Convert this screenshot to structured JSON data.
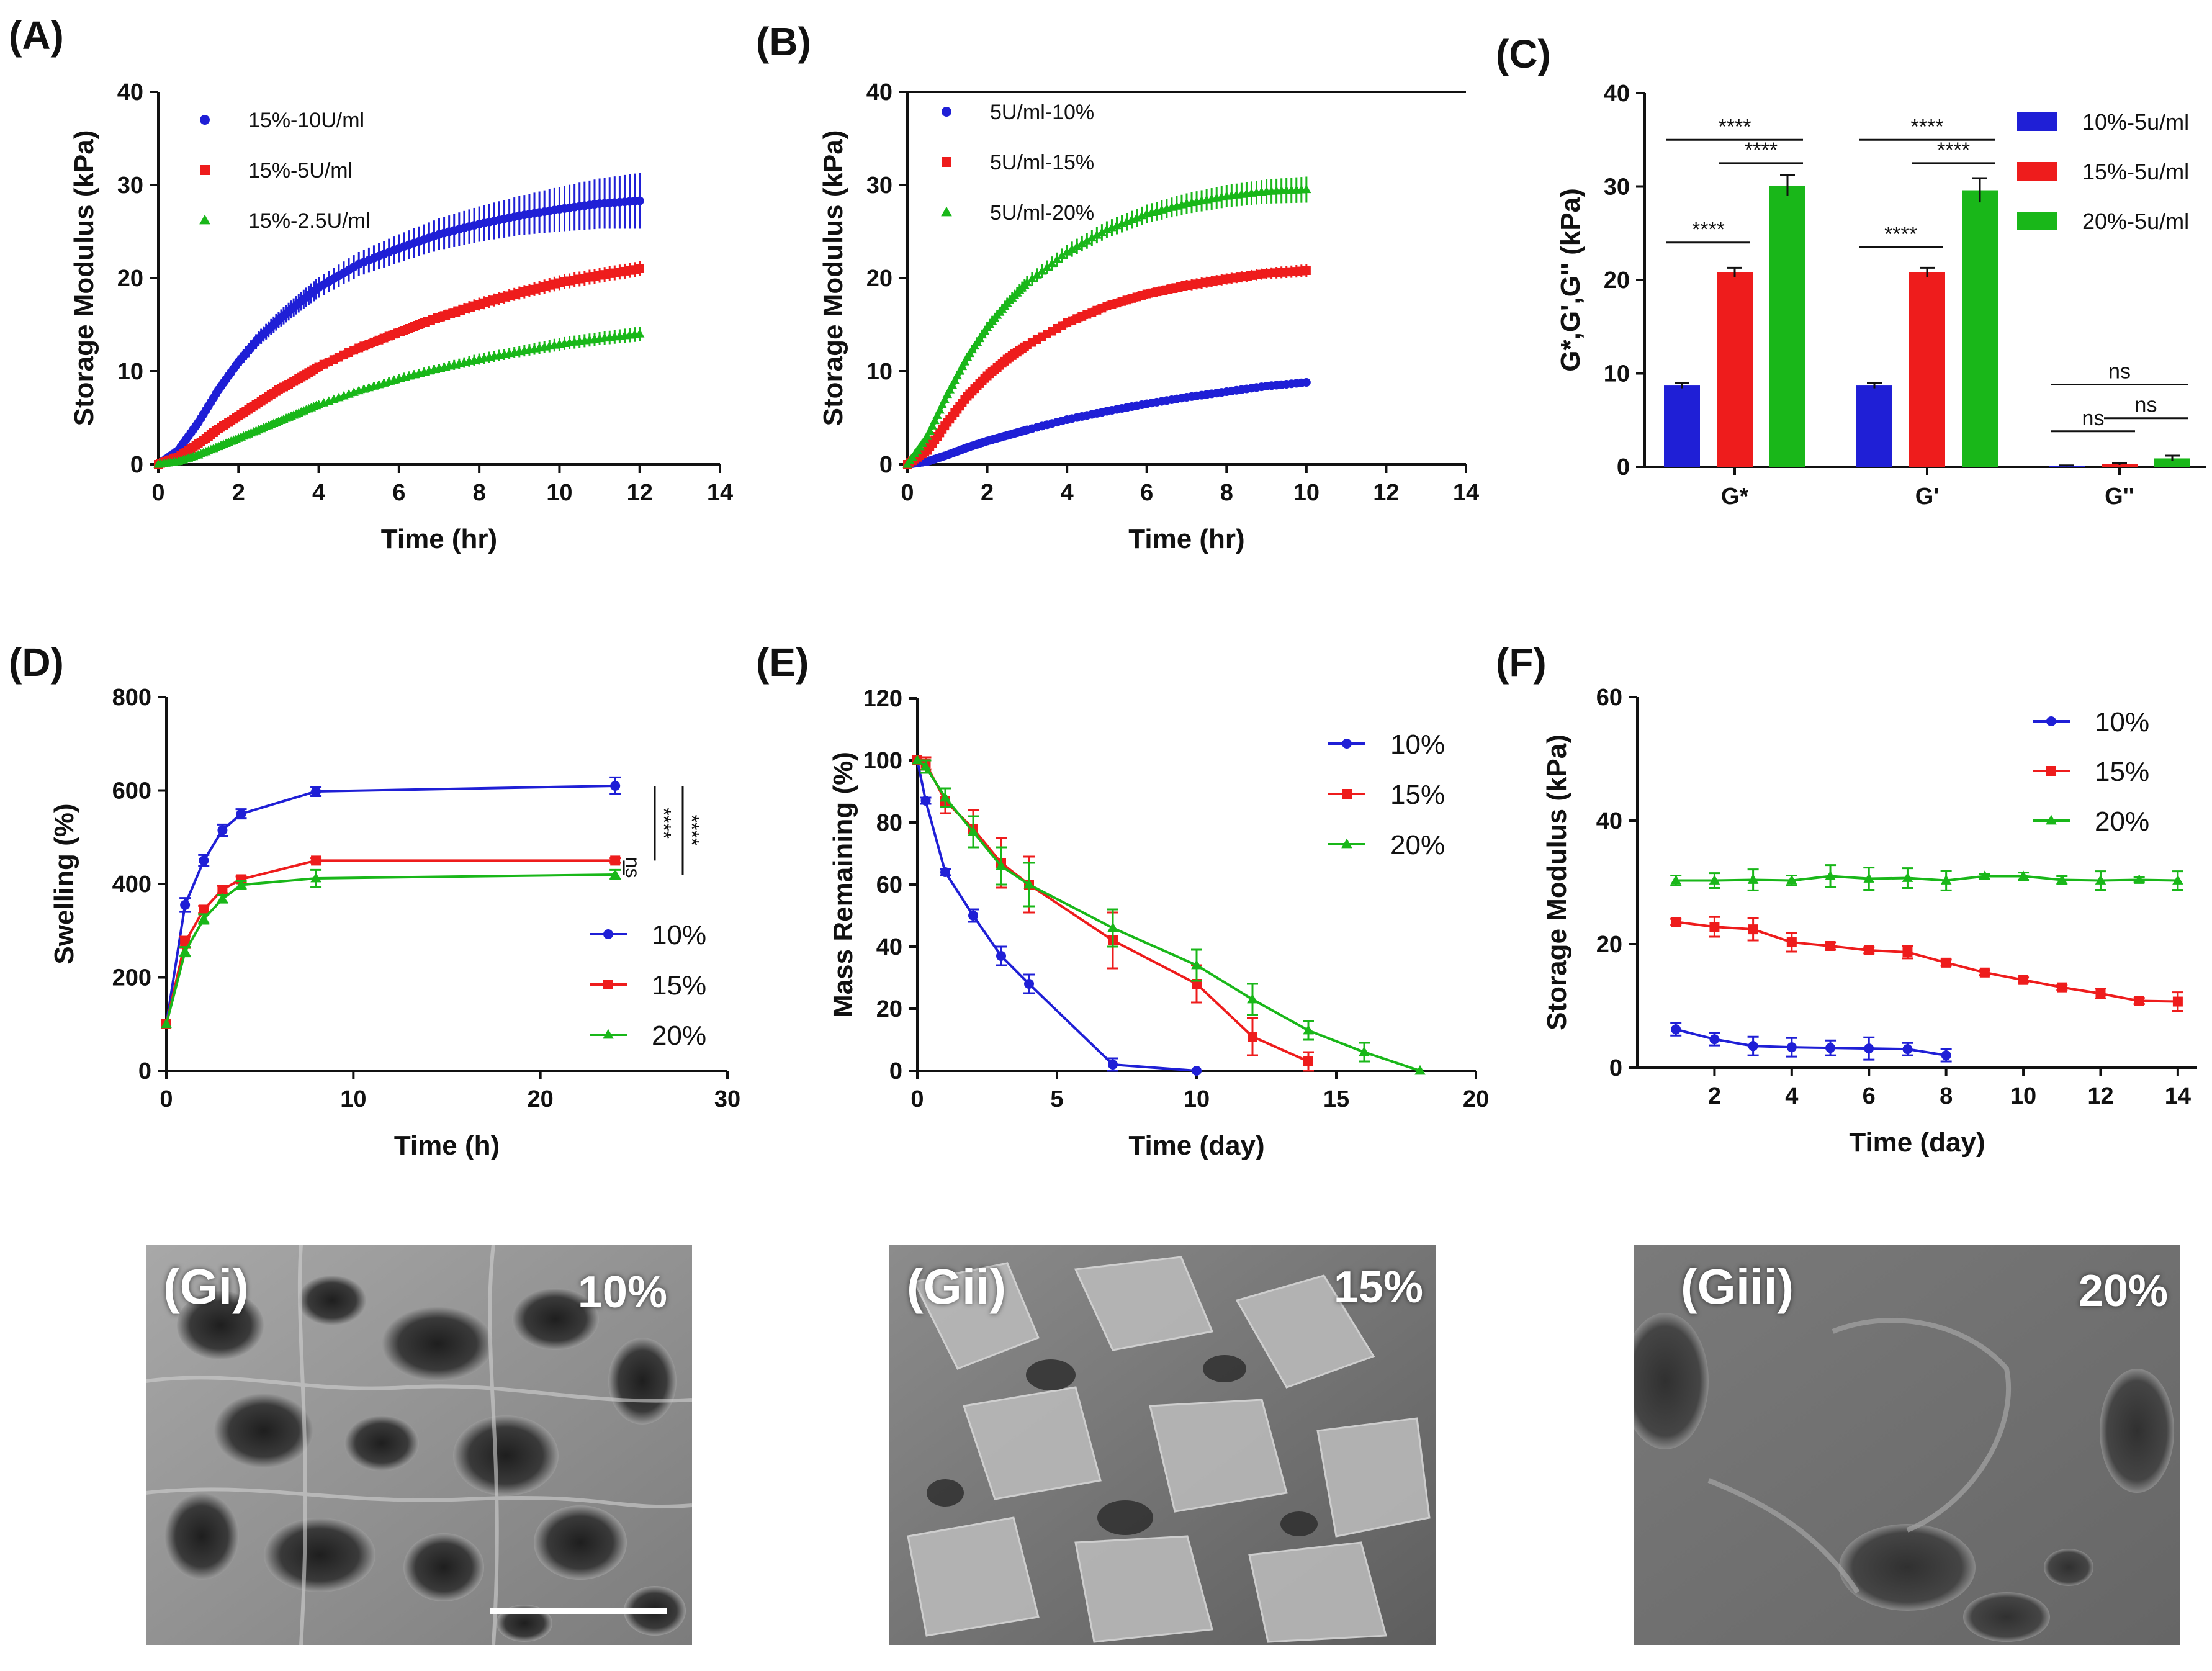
{
  "panels": {
    "A": "(A)",
    "B": "(B)",
    "C": "(C)",
    "D": "(D)",
    "E": "(E)",
    "F": "(F)"
  },
  "colors": {
    "blue": "#1f1fd6",
    "red": "#ee1c1c",
    "green": "#19b719",
    "black": "#111111"
  },
  "chart_data": [
    {
      "id": "A",
      "type": "line",
      "xlabel": "Time (hr)",
      "ylabel": "Storage Modulus (kPa)",
      "xlim": [
        0,
        14
      ],
      "ylim": [
        0,
        40
      ],
      "xticks": [
        0,
        2,
        4,
        6,
        8,
        10,
        12,
        14
      ],
      "yticks": [
        0,
        10,
        20,
        30,
        40
      ],
      "legend_position": "top-left",
      "series": [
        {
          "name": "15%-10U/ml",
          "color": "blue",
          "marker": "circle",
          "x": [
            0,
            0.5,
            1,
            1.5,
            2,
            2.5,
            3,
            3.5,
            4,
            5,
            6,
            7,
            8,
            9,
            10,
            11,
            12
          ],
          "y": [
            0,
            1.5,
            4.5,
            8,
            11,
            13.5,
            15.5,
            17.3,
            19,
            21.5,
            23.2,
            24.7,
            25.8,
            26.7,
            27.4,
            28,
            28.3
          ],
          "err": [
            0.3,
            0.4,
            0.5,
            0.6,
            0.7,
            0.8,
            0.9,
            1,
            1.1,
            1.3,
            1.5,
            1.7,
            1.9,
            2.1,
            2.4,
            2.7,
            3
          ]
        },
        {
          "name": "15%-5U/ml",
          "color": "red",
          "marker": "square",
          "x": [
            0,
            0.5,
            1,
            1.5,
            2,
            2.5,
            3,
            3.5,
            4,
            5,
            6,
            7,
            8,
            9,
            10,
            11,
            12
          ],
          "y": [
            0,
            0.8,
            2.2,
            3.8,
            5.2,
            6.6,
            8,
            9.2,
            10.5,
            12.5,
            14.2,
            15.8,
            17.2,
            18.4,
            19.5,
            20.3,
            21
          ],
          "err": [
            0.2,
            0.2,
            0.3,
            0.3,
            0.3,
            0.4,
            0.4,
            0.4,
            0.5,
            0.5,
            0.6,
            0.6,
            0.7,
            0.7,
            0.8,
            0.8,
            0.8
          ]
        },
        {
          "name": "15%-2.5U/ml",
          "color": "green",
          "marker": "triangle",
          "x": [
            0,
            0.5,
            1,
            1.5,
            2,
            2.5,
            3,
            3.5,
            4,
            5,
            6,
            7,
            8,
            9,
            10,
            11,
            12
          ],
          "y": [
            0,
            0.3,
            1,
            1.9,
            2.8,
            3.7,
            4.6,
            5.5,
            6.4,
            7.9,
            9.2,
            10.3,
            11.3,
            12.1,
            12.9,
            13.5,
            14
          ],
          "err": [
            0.1,
            0.2,
            0.2,
            0.2,
            0.3,
            0.3,
            0.3,
            0.3,
            0.4,
            0.4,
            0.5,
            0.5,
            0.6,
            0.6,
            0.7,
            0.7,
            0.8
          ]
        }
      ]
    },
    {
      "id": "B",
      "type": "line",
      "xlabel": "Time (hr)",
      "ylabel": "Storage Modulus (kPa)",
      "xlim": [
        0,
        14
      ],
      "ylim": [
        0,
        40
      ],
      "xticks": [
        0,
        2,
        4,
        6,
        8,
        10,
        12,
        14
      ],
      "yticks": [
        0,
        10,
        20,
        30,
        40
      ],
      "legend_position": "top-left",
      "series": [
        {
          "name": "5U/ml-10%",
          "color": "blue",
          "marker": "circle",
          "x": [
            0,
            0.5,
            1,
            1.5,
            2,
            2.5,
            3,
            4,
            5,
            6,
            7,
            8,
            9,
            10
          ],
          "y": [
            0,
            0.3,
            1,
            1.8,
            2.5,
            3.1,
            3.7,
            4.8,
            5.7,
            6.5,
            7.2,
            7.8,
            8.4,
            8.8
          ],
          "err": [
            0.1,
            0.1,
            0.1,
            0.1,
            0.1,
            0.2,
            0.2,
            0.2,
            0.2,
            0.2,
            0.2,
            0.2,
            0.3,
            0.3
          ]
        },
        {
          "name": "5U/ml-15%",
          "color": "red",
          "marker": "square",
          "x": [
            0,
            0.5,
            1,
            1.5,
            2,
            2.5,
            3,
            4,
            5,
            6,
            7,
            8,
            9,
            10
          ],
          "y": [
            0,
            1.5,
            4.5,
            7.3,
            9.5,
            11.3,
            12.8,
            15.2,
            17,
            18.3,
            19.2,
            19.9,
            20.5,
            20.8
          ],
          "err": [
            0.2,
            0.3,
            0.3,
            0.3,
            0.4,
            0.4,
            0.4,
            0.5,
            0.5,
            0.5,
            0.6,
            0.6,
            0.6,
            0.7
          ]
        },
        {
          "name": "5U/ml-20%",
          "color": "green",
          "marker": "triangle",
          "x": [
            0,
            0.5,
            1,
            1.5,
            2,
            2.5,
            3,
            4,
            5,
            6,
            7,
            8,
            9,
            10
          ],
          "y": [
            0,
            3,
            7.5,
            11.5,
            14.7,
            17.3,
            19.5,
            22.8,
            25.2,
            26.9,
            28,
            28.8,
            29.3,
            29.5
          ],
          "err": [
            0.3,
            0.4,
            0.5,
            0.5,
            0.6,
            0.6,
            0.7,
            0.8,
            0.9,
            1,
            1.1,
            1.2,
            1.3,
            1.4
          ]
        }
      ]
    },
    {
      "id": "C",
      "type": "bar",
      "ylabel": "G*,G',G'' (kPa)",
      "xlabel": "",
      "ylim": [
        0,
        40
      ],
      "yticks": [
        0,
        10,
        20,
        30,
        40
      ],
      "categories": [
        "G*",
        "G'",
        "G''"
      ],
      "legend_position": "top-right",
      "series": [
        {
          "name": "10%-5u/ml",
          "color": "blue",
          "values": [
            8.7,
            8.7,
            0.1
          ],
          "err": [
            0.3,
            0.3,
            0.05
          ]
        },
        {
          "name": "15%-5u/ml",
          "color": "red",
          "values": [
            20.8,
            20.8,
            0.3
          ],
          "err": [
            0.5,
            0.5,
            0.1
          ]
        },
        {
          "name": "20%-5u/ml",
          "color": "green",
          "values": [
            30.1,
            29.6,
            0.9
          ],
          "err": [
            1.1,
            1.3,
            0.3
          ]
        }
      ],
      "significance": [
        {
          "text": "****",
          "group": 0,
          "from": 0,
          "to": 1,
          "level": 24
        },
        {
          "text": "****",
          "group": 0,
          "from": 0,
          "to": 2,
          "level": 35
        },
        {
          "text": "****",
          "group": 0,
          "from": 1,
          "to": 2,
          "level": 32.5
        },
        {
          "text": "****",
          "group": 1,
          "from": 0,
          "to": 1,
          "level": 23.5
        },
        {
          "text": "****",
          "group": 1,
          "from": 0,
          "to": 2,
          "level": 35
        },
        {
          "text": "****",
          "group": 1,
          "from": 1,
          "to": 2,
          "level": 32.5
        },
        {
          "text": "ns",
          "group": 2,
          "from": 0,
          "to": 1,
          "level": 3.8
        },
        {
          "text": "ns",
          "group": 2,
          "from": 0,
          "to": 2,
          "level": 8.8
        },
        {
          "text": "ns",
          "group": 2,
          "from": 1,
          "to": 2,
          "level": 5.2
        }
      ]
    },
    {
      "id": "D",
      "type": "line",
      "xlabel": "Time (h)",
      "ylabel": "Swelling (%)",
      "xlim": [
        0,
        30
      ],
      "ylim": [
        0,
        800
      ],
      "xticks": [
        0,
        10,
        20,
        30
      ],
      "yticks": [
        0,
        200,
        400,
        600,
        800
      ],
      "legend_position": "bottom-right",
      "series": [
        {
          "name": "10%",
          "color": "blue",
          "marker": "circle",
          "x": [
            0,
            1,
            2,
            3,
            4,
            8,
            24
          ],
          "y": [
            100,
            355,
            450,
            515,
            550,
            598,
            610
          ],
          "err": [
            0,
            15,
            12,
            12,
            10,
            10,
            18
          ]
        },
        {
          "name": "15%",
          "color": "red",
          "marker": "square",
          "x": [
            0,
            1,
            2,
            3,
            4,
            8,
            24
          ],
          "y": [
            100,
            275,
            345,
            388,
            410,
            450,
            450
          ],
          "err": [
            0,
            12,
            8,
            8,
            6,
            5,
            5
          ]
        },
        {
          "name": "20%",
          "color": "green",
          "marker": "triangle",
          "x": [
            0,
            1,
            2,
            3,
            4,
            8,
            24
          ],
          "y": [
            100,
            255,
            325,
            368,
            398,
            412,
            420
          ],
          "err": [
            0,
            10,
            10,
            8,
            8,
            18,
            10
          ]
        }
      ],
      "significance": [
        {
          "text": "ns",
          "y_from": 420,
          "y_to": 450
        },
        {
          "text": "****",
          "y_from": 450,
          "y_to": 610
        },
        {
          "text": "****",
          "y_from": 420,
          "y_to": 610
        }
      ]
    },
    {
      "id": "E",
      "type": "line",
      "xlabel": "Time (day)",
      "ylabel": "Mass Remaining (%)",
      "xlim": [
        0,
        20
      ],
      "ylim": [
        0,
        120
      ],
      "xticks": [
        0,
        5,
        10,
        15,
        20
      ],
      "yticks": [
        0,
        20,
        40,
        60,
        80,
        100,
        120
      ],
      "legend_position": "top-right",
      "series": [
        {
          "name": "10%",
          "color": "blue",
          "marker": "circle",
          "x": [
            0,
            0.3,
            1,
            2,
            3,
            4,
            7,
            10
          ],
          "y": [
            100,
            87,
            64,
            50,
            37,
            28,
            2,
            0
          ],
          "err": [
            0,
            1,
            1,
            2,
            3,
            3,
            2,
            0
          ]
        },
        {
          "name": "15%",
          "color": "red",
          "marker": "square",
          "x": [
            0,
            0.3,
            1,
            2,
            3,
            4,
            7,
            10,
            12,
            14
          ],
          "y": [
            100,
            99,
            87,
            78,
            67,
            60,
            42,
            28,
            11,
            3
          ],
          "err": [
            0,
            2,
            4,
            6,
            8,
            9,
            9,
            6,
            6,
            3
          ]
        },
        {
          "name": "20%",
          "color": "green",
          "marker": "triangle",
          "x": [
            0,
            0.3,
            1,
            2,
            3,
            4,
            7,
            10,
            12,
            14,
            16,
            18
          ],
          "y": [
            100,
            98,
            88,
            77,
            66,
            60,
            46,
            34,
            23,
            13,
            6,
            0
          ],
          "err": [
            0,
            2,
            3,
            5,
            6,
            7,
            6,
            5,
            5,
            3,
            3,
            0
          ]
        }
      ]
    },
    {
      "id": "F",
      "type": "line",
      "xlabel": "Time (day)",
      "ylabel": "Storage Modulus (kPa)",
      "xlim": [
        0,
        14.5
      ],
      "ylim": [
        0,
        60
      ],
      "xticks": [
        2,
        4,
        6,
        8,
        10,
        12,
        14
      ],
      "yticks": [
        0,
        20,
        40,
        60
      ],
      "legend_position": "top-right",
      "series": [
        {
          "name": "10%",
          "color": "blue",
          "marker": "circle",
          "x": [
            1,
            2,
            3,
            4,
            5,
            6,
            7,
            8
          ],
          "y": [
            6.2,
            4.6,
            3.5,
            3.3,
            3.2,
            3.1,
            3.0,
            2.0
          ],
          "err": [
            1,
            1,
            1.5,
            1.5,
            1.2,
            1.8,
            1,
            1
          ]
        },
        {
          "name": "15%",
          "color": "red",
          "marker": "square",
          "x": [
            1,
            2,
            3,
            4,
            5,
            6,
            7,
            8,
            9,
            10,
            11,
            12,
            13,
            14
          ],
          "y": [
            23.6,
            22.8,
            22.4,
            20.3,
            19.7,
            19.0,
            18.7,
            17.0,
            15.4,
            14.2,
            13.0,
            12.0,
            10.8,
            10.7
          ],
          "err": [
            0.5,
            1.6,
            1.8,
            1.5,
            0.6,
            0.5,
            1.0,
            0.5,
            0.4,
            0.4,
            0.4,
            0.8,
            0.5,
            1.5
          ]
        },
        {
          "name": "20%",
          "color": "green",
          "marker": "triangle",
          "x": [
            1,
            2,
            3,
            4,
            5,
            6,
            7,
            8,
            9,
            10,
            11,
            12,
            13,
            14
          ],
          "y": [
            30.3,
            30.3,
            30.4,
            30.3,
            31.0,
            30.6,
            30.7,
            30.3,
            31.0,
            31.0,
            30.4,
            30.3,
            30.4,
            30.3
          ],
          "err": [
            0.8,
            1.2,
            1.7,
            0.8,
            1.8,
            1.8,
            1.6,
            1.6,
            0.4,
            0.6,
            0.6,
            1.5,
            0.4,
            1.5
          ]
        }
      ]
    }
  ],
  "sem_images": [
    {
      "id": "Gi",
      "label": "(Gi)",
      "percent": "10%",
      "scale_bar": true,
      "texture": "porous"
    },
    {
      "id": "Gii",
      "label": "(Gii)",
      "percent": "15%",
      "scale_bar": false,
      "texture": "flaky"
    },
    {
      "id": "Giii",
      "label": "(Giii)",
      "percent": "20%",
      "scale_bar": false,
      "texture": "smooth"
    }
  ]
}
